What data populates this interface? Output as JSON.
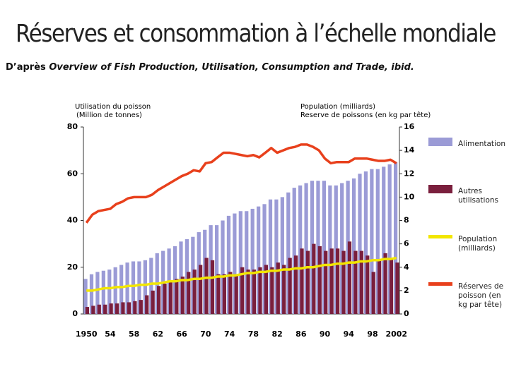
{
  "chart_data": {
    "type": "bar",
    "title": "Réserves et consommation à l’échelle mondiale",
    "source_prefix": "D’après",
    "source_title": "Overview of Fish Production, Utilisation, Consumption and Trade, ibid.",
    "ylabel": [
      "Utilisation du poisson",
      "(Million de tonnes)"
    ],
    "y2label": [
      "Population (milliards)",
      "Reserve de poissons (en kg par tête)"
    ],
    "categories": [
      "1950",
      null,
      null,
      null,
      "54",
      null,
      null,
      null,
      "58",
      null,
      null,
      null,
      "62",
      null,
      null,
      null,
      "66",
      null,
      null,
      null,
      "70",
      null,
      null,
      null,
      "74",
      null,
      null,
      null,
      "78",
      null,
      null,
      null,
      "82",
      null,
      null,
      null,
      "86",
      null,
      null,
      null,
      "90",
      null,
      null,
      null,
      "94",
      null,
      null,
      null,
      "98",
      null,
      null,
      null,
      "2002"
    ],
    "ylim": [
      0,
      80
    ],
    "yticks": [
      0,
      20,
      40,
      60,
      80
    ],
    "y2lim": [
      0,
      16
    ],
    "y2ticks": [
      0,
      2,
      4,
      6,
      8,
      10,
      12,
      14,
      16
    ],
    "series": [
      {
        "name": "Alimentation",
        "type": "bar",
        "color": "#9b9bd6",
        "values": [
          15,
          17,
          18,
          18.5,
          19,
          20,
          21,
          22,
          22.5,
          22.5,
          23,
          24,
          26,
          27,
          28,
          29,
          31,
          32,
          33,
          35,
          36,
          38,
          38,
          40,
          42,
          43,
          44,
          44,
          45,
          46,
          47,
          49,
          49,
          50,
          52,
          54,
          55,
          56,
          57,
          57,
          57,
          55,
          55,
          56,
          57,
          58,
          60,
          61,
          62,
          62,
          63,
          64,
          65
        ]
      },
      {
        "name": "Autres utilisations",
        "type": "bar",
        "color": "#7a1f3d",
        "values": [
          3,
          3.5,
          4,
          4,
          4.5,
          4.5,
          5,
          5,
          5.5,
          6,
          8,
          10,
          12,
          13,
          14,
          15,
          16,
          18,
          19,
          21,
          24,
          23,
          17,
          17,
          18,
          17,
          20,
          19,
          19,
          20,
          21,
          20,
          22,
          21,
          24,
          25,
          28,
          27,
          30,
          29,
          27,
          28,
          28,
          27,
          31,
          27,
          27,
          25,
          18,
          23,
          26,
          24,
          22
        ]
      },
      {
        "name": "Population (milliards)",
        "type": "line",
        "axis": "y2",
        "color": "#f2e600",
        "values": [
          2.0,
          2.0,
          2.1,
          2.2,
          2.2,
          2.3,
          2.3,
          2.4,
          2.4,
          2.5,
          2.5,
          2.6,
          2.6,
          2.7,
          2.8,
          2.8,
          2.9,
          2.9,
          3.0,
          3.0,
          3.1,
          3.1,
          3.2,
          3.2,
          3.3,
          3.3,
          3.4,
          3.5,
          3.5,
          3.6,
          3.6,
          3.7,
          3.7,
          3.8,
          3.8,
          3.9,
          3.9,
          4.0,
          4.0,
          4.1,
          4.2,
          4.2,
          4.3,
          4.3,
          4.4,
          4.4,
          4.5,
          4.5,
          4.6,
          4.6,
          4.7,
          4.7,
          4.8
        ]
      },
      {
        "name": "Réserves de poisson (en kg par tête)",
        "type": "line",
        "axis": "y2",
        "color": "#e8401c",
        "values": [
          7.8,
          8.5,
          8.8,
          8.9,
          9.0,
          9.4,
          9.6,
          9.9,
          10.0,
          10.0,
          10.0,
          10.2,
          10.6,
          10.9,
          11.2,
          11.5,
          11.8,
          12.0,
          12.3,
          12.2,
          12.9,
          13.0,
          13.4,
          13.8,
          13.8,
          13.7,
          13.6,
          13.5,
          13.6,
          13.4,
          13.8,
          14.2,
          13.8,
          14.0,
          14.2,
          14.3,
          14.5,
          14.5,
          14.3,
          14.0,
          13.3,
          12.9,
          13.0,
          13.0,
          13.0,
          13.3,
          13.3,
          13.3,
          13.2,
          13.1,
          13.1,
          13.2,
          12.9
        ]
      }
    ]
  }
}
